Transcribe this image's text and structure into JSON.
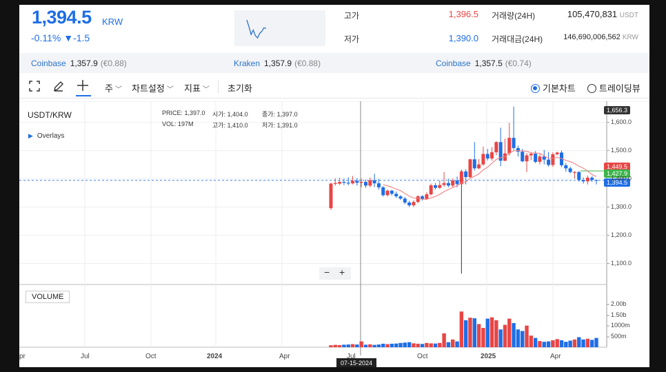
{
  "header": {
    "price": "1,394.5",
    "unit": "KRW",
    "change_pct": "-0.11%",
    "change_abs": "▼-1.5",
    "sparkline": [
      1404,
      1398,
      1391,
      1395,
      1390,
      1388,
      1392,
      1394,
      1397,
      1396.5
    ],
    "stats": {
      "high_label": "고가",
      "high_value": "1,396.5",
      "low_label": "저가",
      "low_value": "1,390.0",
      "volume_label": "거래량(24H)",
      "volume_value": "105,470,831",
      "volume_unit": "USDT",
      "amount_label": "거래대금(24H)",
      "amount_value": "146,690,006,562",
      "amount_unit": "KRW"
    }
  },
  "exchanges": [
    {
      "name": "Coinbase",
      "price": "1,357.9",
      "diff": "(€0.88)"
    },
    {
      "name": "Kraken",
      "price": "1,357.9",
      "diff": "(€0.88)"
    },
    {
      "name": "Coinbase",
      "price": "1,357.5",
      "diff": "(€0.74)"
    }
  ],
  "toolbar": {
    "period": "주",
    "chart_settings": "차트설정",
    "indicators": "지표",
    "reset": "초기화",
    "basic_chart": "기본차트",
    "trading_view": "트레이딩뷰"
  },
  "chart_meta": {
    "symbol": "USDT/KRW",
    "overlays": "Overlays",
    "volume_label": "VOLUME",
    "info": {
      "price_label": "PRICE:",
      "price": "1,397.0",
      "open_label": "시가:",
      "open": "1,404.0",
      "close_label": "종가:",
      "close": "1,397.0",
      "vol_label": "VOL:",
      "vol": "197M",
      "high_label": "고가:",
      "high": "1,410.0",
      "low_label": "저가:",
      "low": "1,391.0"
    },
    "crosshair_date": "07-15-2024",
    "tags": {
      "high": "1,656.3",
      "ma": "1,449.5",
      "green": "1,427.9",
      "current": "1,394.5"
    },
    "colors": {
      "up": "#e84545",
      "down": "#1e6ee6",
      "ma": "#f08080",
      "green": "#3cb54a",
      "dark": "#333333"
    }
  },
  "chart_data": {
    "type": "candlestick",
    "price_axis_ticks": [
      "1,600.0",
      "1,500.0",
      "1,400.0",
      "1,300.0",
      "1,200.0",
      "1,100.0"
    ],
    "price_axis_values": [
      1600,
      1500,
      1400,
      1300,
      1200,
      1100
    ],
    "ylim": [
      1050,
      1660
    ],
    "volume_axis_ticks": [
      "2.00b",
      "1.50b",
      "1000m",
      "500m"
    ],
    "x_ticks": [
      "pr",
      "Jul",
      "Oct",
      "2024",
      "Apr",
      "Jul",
      "Oct",
      "2025",
      "Apr"
    ],
    "candles": [
      [
        1296,
        1383,
        1290,
        1386,
        0.1
      ],
      [
        1382,
        1385,
        1376,
        1402,
        0.12
      ],
      [
        1383,
        1389,
        1378,
        1404,
        0.11
      ],
      [
        1389,
        1386,
        1378,
        1401,
        0.13
      ],
      [
        1386,
        1384,
        1377,
        1405,
        0.14
      ],
      [
        1384,
        1393,
        1380,
        1410,
        0.16
      ],
      [
        1393,
        1386,
        1376,
        1403,
        0.14
      ],
      [
        1386,
        1389,
        1370,
        1400,
        0.3
      ],
      [
        1389,
        1376,
        1368,
        1397,
        0.13
      ],
      [
        1376,
        1395,
        1370,
        1405,
        0.15
      ],
      [
        1395,
        1384,
        1371,
        1418,
        0.12
      ],
      [
        1384,
        1370,
        1362,
        1400,
        0.14
      ],
      [
        1370,
        1342,
        1337,
        1374,
        0.18
      ],
      [
        1342,
        1358,
        1338,
        1362,
        0.16
      ],
      [
        1358,
        1347,
        1341,
        1361,
        0.18
      ],
      [
        1347,
        1338,
        1332,
        1355,
        0.19
      ],
      [
        1338,
        1330,
        1325,
        1342,
        0.22
      ],
      [
        1330,
        1316,
        1310,
        1336,
        0.24
      ],
      [
        1316,
        1306,
        1300,
        1322,
        0.26
      ],
      [
        1306,
        1318,
        1300,
        1324,
        0.2
      ],
      [
        1318,
        1338,
        1314,
        1342,
        0.18
      ],
      [
        1338,
        1329,
        1323,
        1342,
        0.17
      ],
      [
        1329,
        1345,
        1326,
        1352,
        0.22
      ],
      [
        1345,
        1377,
        1341,
        1383,
        0.2
      ],
      [
        1377,
        1368,
        1362,
        1385,
        0.19
      ],
      [
        1368,
        1378,
        1364,
        1394,
        0.22
      ],
      [
        1378,
        1385,
        1372,
        1424,
        0.72
      ],
      [
        1385,
        1376,
        1370,
        1400,
        0.26
      ],
      [
        1376,
        1394,
        1370,
        1401,
        0.4
      ],
      [
        1394,
        1381,
        1370,
        1408,
        0.3
      ],
      [
        1381,
        1426,
        1064,
        1432,
        1.85
      ],
      [
        1426,
        1406,
        1380,
        1434,
        1.4
      ],
      [
        1406,
        1469,
        1402,
        1471,
        1.53
      ],
      [
        1469,
        1437,
        1429,
        1530,
        1.5
      ],
      [
        1437,
        1451,
        1434,
        1470,
        1.2
      ],
      [
        1451,
        1488,
        1446,
        1514,
        1.0
      ],
      [
        1488,
        1472,
        1465,
        1506,
        1.48
      ],
      [
        1472,
        1494,
        1464,
        1512,
        1.55
      ],
      [
        1494,
        1530,
        1484,
        1533,
        1.4
      ],
      [
        1530,
        1464,
        1445,
        1581,
        0.92
      ],
      [
        1464,
        1490,
        1462,
        1542,
        1.16
      ],
      [
        1490,
        1545,
        1482,
        1598,
        1.48
      ],
      [
        1545,
        1509,
        1502,
        1656,
        1.25
      ],
      [
        1509,
        1496,
        1479,
        1518,
        0.92
      ],
      [
        1496,
        1462,
        1459,
        1506,
        0.84
      ],
      [
        1462,
        1483,
        1424,
        1491,
        1.12
      ],
      [
        1483,
        1489,
        1466,
        1494,
        0.6
      ],
      [
        1489,
        1460,
        1455,
        1498,
        0.48
      ],
      [
        1460,
        1479,
        1451,
        1488,
        0.32
      ],
      [
        1479,
        1468,
        1451,
        1502,
        0.28
      ],
      [
        1468,
        1449,
        1443,
        1495,
        0.3
      ],
      [
        1449,
        1487,
        1442,
        1494,
        0.36
      ],
      [
        1487,
        1493,
        1483,
        1496,
        0.42
      ],
      [
        1493,
        1448,
        1442,
        1500,
        0.36
      ],
      [
        1448,
        1437,
        1425,
        1456,
        0.28
      ],
      [
        1437,
        1424,
        1419,
        1443,
        0.34
      ],
      [
        1424,
        1424,
        1401,
        1427,
        0.4
      ],
      [
        1424,
        1396,
        1390,
        1427,
        0.52
      ],
      [
        1396,
        1391,
        1383,
        1405,
        0.4
      ],
      [
        1391,
        1404,
        1380,
        1412,
        0.44
      ],
      [
        1404,
        1396,
        1389,
        1410,
        0.38
      ],
      [
        1396,
        1394,
        1380,
        1397,
        0.48
      ]
    ]
  }
}
